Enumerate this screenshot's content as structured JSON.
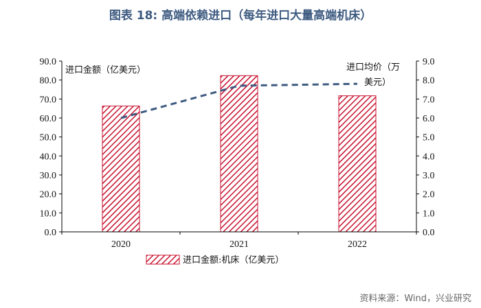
{
  "title": "图表 18: 高端依赖进口（每年进口大量高端机床）",
  "source": "资料来源：Wind，兴业研究",
  "colors": {
    "bar": "#c8102e",
    "line": "#3d5a80",
    "title": "#3d5a80"
  },
  "chart_data": {
    "type": "bar",
    "categories": [
      "2020",
      "2021",
      "2022"
    ],
    "series": [
      {
        "name": "进口金额:机床（亿美元）",
        "type": "bar",
        "axis": "left",
        "values": [
          66.3,
          82.3,
          71.7
        ]
      },
      {
        "name": "进口均价（万美元）",
        "type": "line",
        "axis": "right",
        "values": [
          6.0,
          7.7,
          7.8
        ]
      }
    ],
    "left_axis": {
      "label": "进口金额（亿美元）",
      "ylim": [
        0,
        90
      ],
      "ticks": [
        "0.0",
        "10.0",
        "20.0",
        "30.0",
        "40.0",
        "50.0",
        "60.0",
        "70.0",
        "80.0",
        "90.0"
      ]
    },
    "right_axis": {
      "label_line1": "进口均价（万",
      "label_line2": "美元）",
      "ylim": [
        0,
        9
      ],
      "ticks": [
        "0.0",
        "1.0",
        "2.0",
        "3.0",
        "4.0",
        "5.0",
        "6.0",
        "7.0",
        "8.0",
        "9.0"
      ]
    },
    "legend": {
      "label": "进口金额:机床（亿美元）",
      "position": "bottom"
    },
    "grid": false
  }
}
